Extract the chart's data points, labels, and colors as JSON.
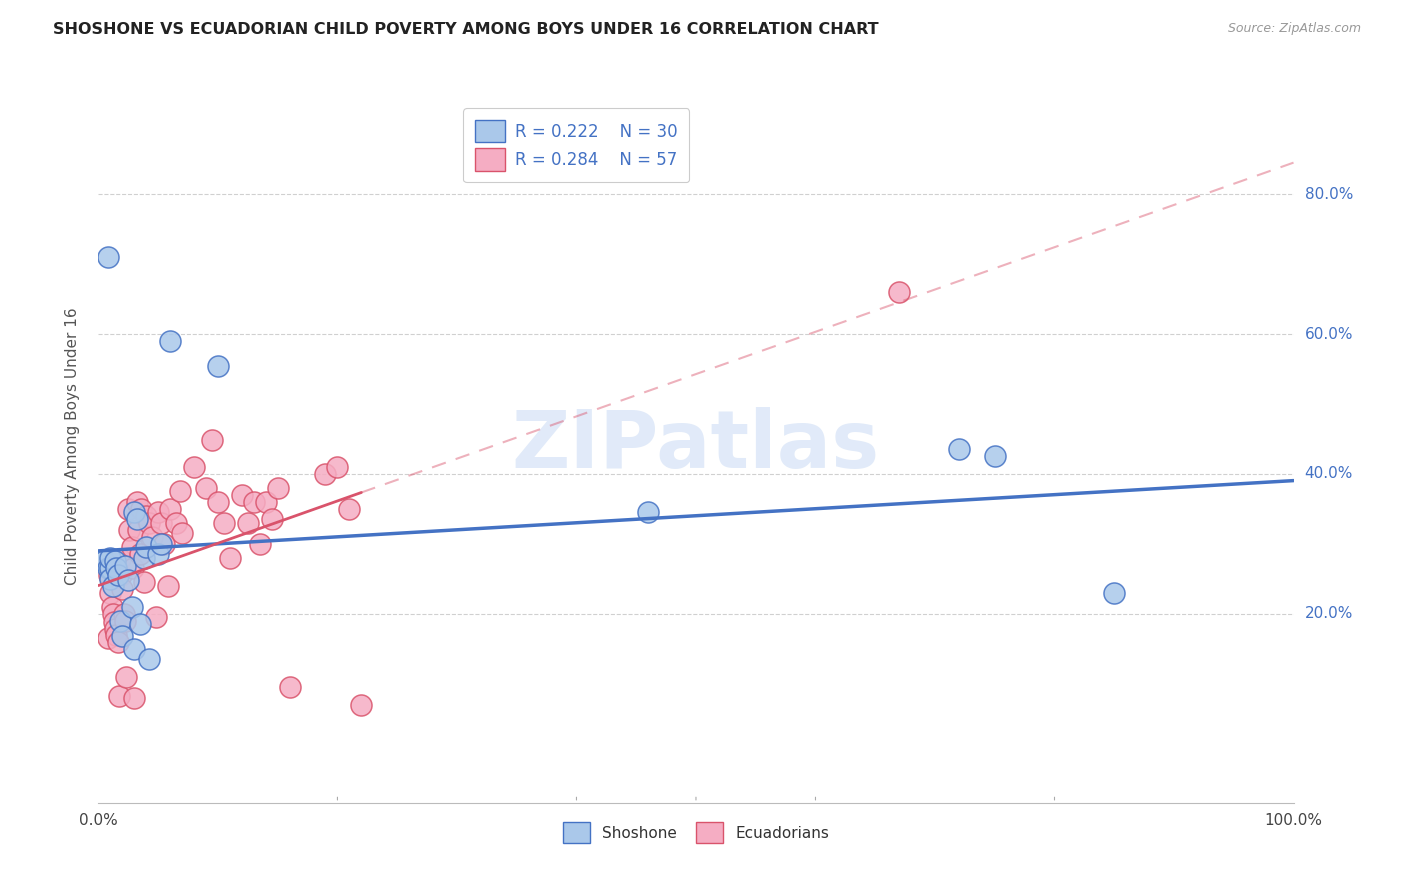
{
  "title": "SHOSHONE VS ECUADORIAN CHILD POVERTY AMONG BOYS UNDER 16 CORRELATION CHART",
  "source": "Source: ZipAtlas.com",
  "ylabel": "Child Poverty Among Boys Under 16",
  "xlim": [
    0.0,
    1.0
  ],
  "ylim": [
    -0.07,
    0.95
  ],
  "x_ticks": [
    0.0,
    0.2,
    0.4,
    0.6,
    0.8,
    1.0
  ],
  "x_tick_labels": [
    "0.0%",
    "",
    "",
    "",
    "",
    "100.0%"
  ],
  "y_ticks": [
    0.2,
    0.4,
    0.6,
    0.8
  ],
  "y_tick_labels": [
    "20.0%",
    "40.0%",
    "60.0%",
    "80.0%"
  ],
  "legend_labels": [
    "Shoshone",
    "Ecuadorians"
  ],
  "shoshone_R": "0.222",
  "shoshone_N": "30",
  "ecuadorian_R": "0.284",
  "ecuadorian_N": "57",
  "shoshone_color": "#aac8ea",
  "ecuadorian_color": "#f5adc3",
  "shoshone_line_color": "#4472c4",
  "ecuadorian_line_color": "#d9536b",
  "watermark": "ZIPatlas",
  "watermark_color": "#cdddf5",
  "grid_color": "#d0d0d0",
  "shoshone_x": [
    0.005,
    0.008,
    0.01,
    0.01,
    0.01,
    0.012,
    0.014,
    0.015,
    0.016,
    0.018,
    0.02,
    0.022,
    0.025,
    0.028,
    0.03,
    0.03,
    0.032,
    0.035,
    0.038,
    0.04,
    0.042,
    0.05,
    0.052,
    0.06,
    0.1,
    0.46,
    0.72,
    0.75,
    0.85,
    0.008
  ],
  "shoshone_y": [
    0.275,
    0.265,
    0.265,
    0.28,
    0.25,
    0.24,
    0.275,
    0.265,
    0.255,
    0.19,
    0.168,
    0.268,
    0.248,
    0.21,
    0.15,
    0.345,
    0.335,
    0.185,
    0.28,
    0.296,
    0.135,
    0.285,
    0.3,
    0.59,
    0.555,
    0.345,
    0.435,
    0.425,
    0.23,
    0.71
  ],
  "ecuadorian_x": [
    0.008,
    0.009,
    0.01,
    0.011,
    0.012,
    0.013,
    0.014,
    0.015,
    0.016,
    0.017,
    0.018,
    0.019,
    0.02,
    0.021,
    0.022,
    0.023,
    0.025,
    0.026,
    0.028,
    0.029,
    0.03,
    0.032,
    0.033,
    0.035,
    0.036,
    0.038,
    0.04,
    0.042,
    0.045,
    0.048,
    0.05,
    0.052,
    0.055,
    0.058,
    0.06,
    0.065,
    0.068,
    0.07,
    0.08,
    0.09,
    0.095,
    0.1,
    0.105,
    0.11,
    0.12,
    0.125,
    0.13,
    0.135,
    0.14,
    0.145,
    0.15,
    0.16,
    0.19,
    0.2,
    0.21,
    0.22,
    0.67
  ],
  "ecuadorian_y": [
    0.165,
    0.255,
    0.23,
    0.21,
    0.2,
    0.188,
    0.178,
    0.17,
    0.16,
    0.082,
    0.278,
    0.255,
    0.235,
    0.2,
    0.19,
    0.11,
    0.35,
    0.32,
    0.295,
    0.265,
    0.08,
    0.36,
    0.32,
    0.285,
    0.35,
    0.245,
    0.34,
    0.33,
    0.31,
    0.195,
    0.345,
    0.33,
    0.3,
    0.24,
    0.35,
    0.33,
    0.375,
    0.315,
    0.41,
    0.38,
    0.448,
    0.36,
    0.33,
    0.28,
    0.37,
    0.33,
    0.36,
    0.3,
    0.36,
    0.335,
    0.38,
    0.095,
    0.4,
    0.41,
    0.35,
    0.07,
    0.66
  ],
  "background_color": "#ffffff"
}
